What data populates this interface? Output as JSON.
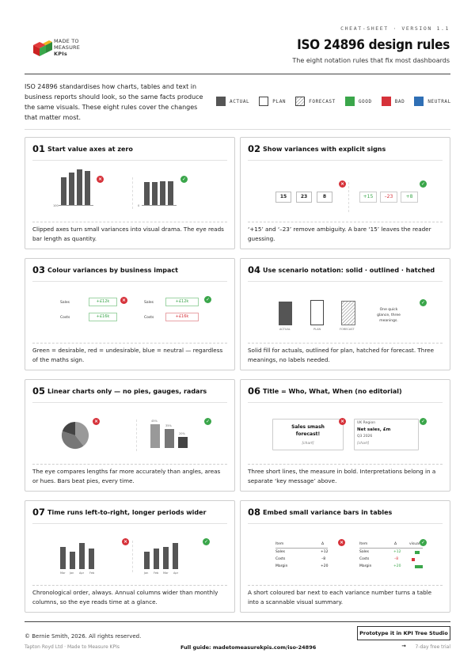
{
  "header": {
    "eyebrow": "CHEAT-SHEET · VERSION 1.1",
    "title": "ISO 24896 design rules",
    "subtitle": "The eight notation rules that fix most dashboards",
    "logo": {
      "line1": "MADE TO",
      "line2": "MEASURE",
      "line3": "KPIs"
    }
  },
  "intro": "ISO 24896 standardises how charts, tables and text in business reports should look, so the same facts produce the same visuals. These eight rules cover the changes that matter most.",
  "legend": [
    {
      "label": "ACTUAL",
      "color": "#555555"
    },
    {
      "label": "PLAN",
      "color": "#ffffff"
    },
    {
      "label": "FORECAST",
      "color": "hatched"
    },
    {
      "label": "GOOD",
      "color": "#3aa64a"
    },
    {
      "label": "BAD",
      "color": "#d6323a"
    },
    {
      "label": "NEUTRAL",
      "color": "#2f6fb5"
    }
  ],
  "cards": [
    {
      "num": "01",
      "title": "Start value axes at zero",
      "desc": "Clipped axes turn small variances into visual drama. The eye reads bar length as quantity."
    },
    {
      "num": "02",
      "title": "Show variances with explicit signs",
      "desc": "‘+15’ and ‘–23’ remove ambiguity. A bare ‘15’ leaves the reader guessing."
    },
    {
      "num": "03",
      "title": "Colour variances by business impact",
      "desc": "Green = desirable, red = undesirable, blue = neutral — regardless of the maths sign."
    },
    {
      "num": "04",
      "title": "Use scenario notation: solid · outlined · hatched",
      "desc": "Solid fill for actuals, outlined for plan, hatched for forecast. Three meanings, no labels needed."
    },
    {
      "num": "05",
      "title": "Linear charts only — no pies, gauges, radars",
      "desc": "The eye compares lengths far more accurately than angles, areas or hues. Bars beat pies, every time."
    },
    {
      "num": "06",
      "title": "Title = Who, What, When (no editorial)",
      "desc": "Three short lines, the measure in bold. Interpretations belong in a separate ‘key message’ above."
    },
    {
      "num": "07",
      "title": "Time runs left-to-right, longer periods wider",
      "desc": "Chronological order, always. Annual columns wider than monthly columns, so the eye reads time at a glance."
    },
    {
      "num": "08",
      "title": "Embed small variance bars in tables",
      "desc": "A short coloured bar next to each variance number turns a table into a scannable visual summary."
    }
  ],
  "v01": {
    "left_tick": "100",
    "right_tick": "0"
  },
  "v02": {
    "bare": [
      "15",
      "23",
      "8"
    ],
    "signed": [
      "+15",
      "–23",
      "+8"
    ]
  },
  "v03": {
    "sales_label": "Sales",
    "costs_label": "Costs",
    "left_sales": "+£12k",
    "left_costs": "+£16k",
    "right_sales": "+£12k",
    "right_costs": "+£16k"
  },
  "v04": {
    "labels": [
      "ACTUAL",
      "PLAN",
      "FORECAST"
    ],
    "note": "One quick glance, three meanings."
  },
  "v05": {
    "labels": [
      "45%",
      "35%",
      "20%"
    ]
  },
  "v06": {
    "bad_line1": "Sales smash",
    "bad_line2": "forecast!",
    "bad_chart": "[chart]",
    "good_who": "UK Region",
    "good_what": "Net sales, £m",
    "good_when": "Q3 2026",
    "good_chart": "[chart]"
  },
  "v07": {
    "left_months": [
      "Mar",
      "Jan",
      "Apr",
      "Feb"
    ],
    "right_months": [
      "Jan",
      "Feb",
      "Mar",
      "Apr"
    ]
  },
  "v08": {
    "h_item": "Item",
    "h_delta": "Δ",
    "h_visual": "visual",
    "rows": [
      {
        "item": "Sales",
        "delta": "+12"
      },
      {
        "item": "Costs",
        "delta": "–8"
      },
      {
        "item": "Margin",
        "delta": "+20"
      }
    ]
  },
  "footer": {
    "copyright": "© Bernie Smith, 2026. All rights reserved.",
    "company": "Tapton Royd Ltd · Made to Measure KPIs",
    "guide": "Full guide: madetomeasurekpis.com/iso-24896",
    "cta": "Prototype it in KPI Tree Studio →",
    "trial": "7-day free trial"
  }
}
